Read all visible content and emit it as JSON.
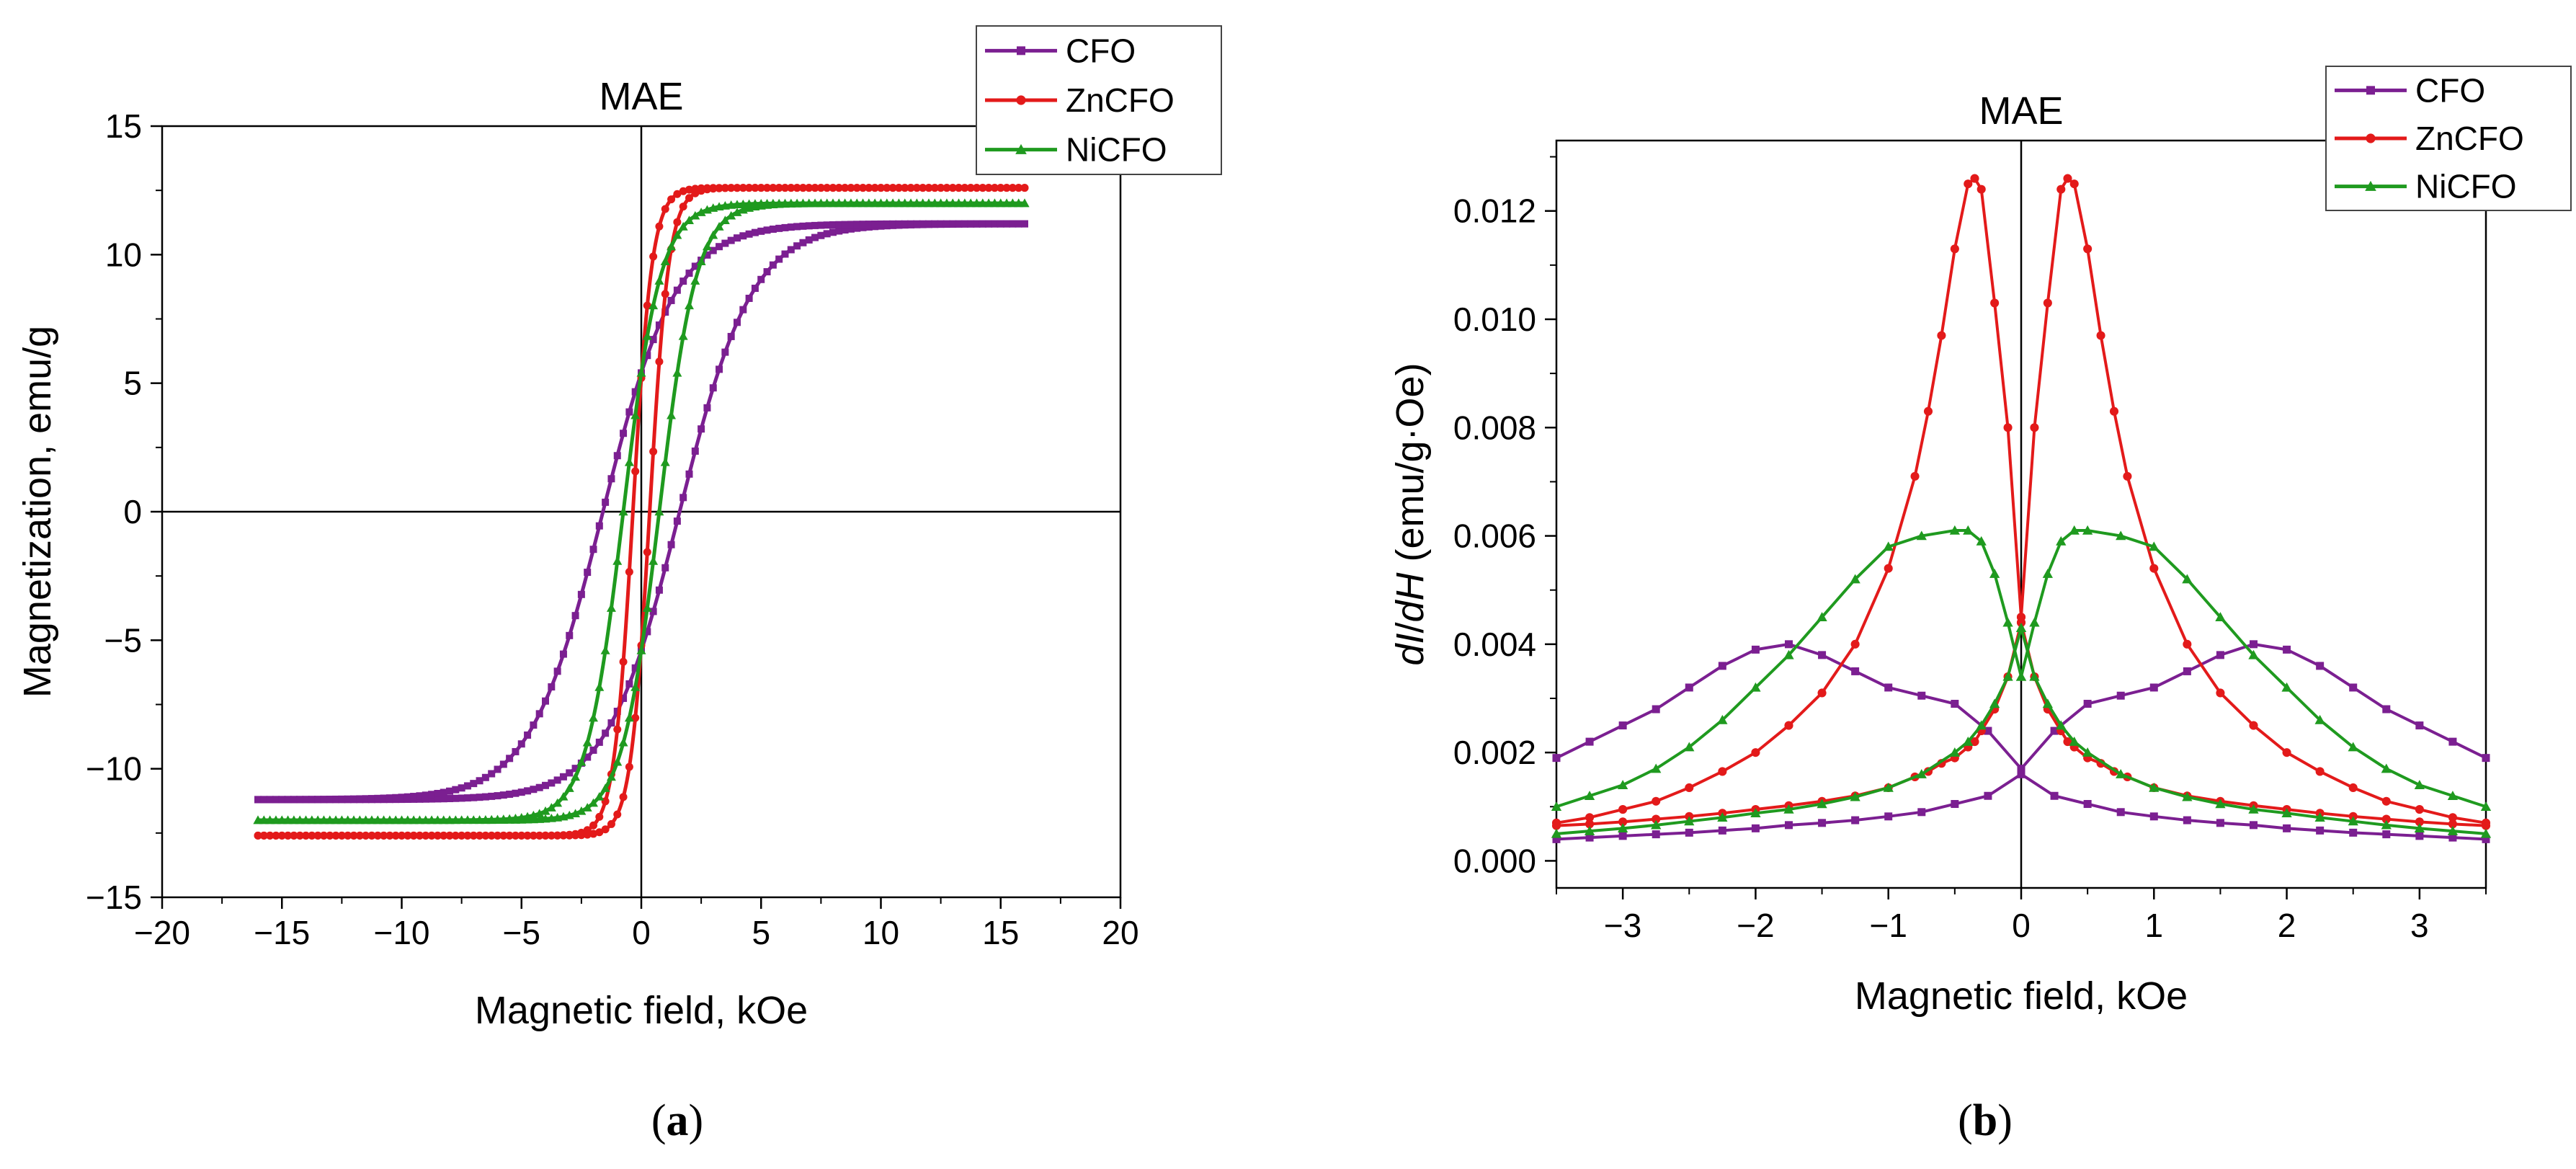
{
  "chart_data": [
    {
      "type": "line",
      "panel_label": "a",
      "title": "MAE",
      "xlabel": "Magnetic field, kOe",
      "ylabel": "Magnetization, emu/g",
      "xlim": [
        -20,
        20
      ],
      "ylim": [
        -15,
        15
      ],
      "xticks": [
        -20,
        -15,
        -10,
        -5,
        0,
        5,
        10,
        15,
        20
      ],
      "xtick_labels": [
        "−20",
        "−15",
        "−10",
        "−5",
        "0",
        "5",
        "10",
        "15",
        "20"
      ],
      "yticks": [
        -15,
        -10,
        -5,
        0,
        5,
        10,
        15
      ],
      "ytick_labels": [
        "−15",
        "−10",
        "−5",
        "0",
        "5",
        "10",
        "15"
      ],
      "legend_position": "top-right",
      "series": [
        {
          "name": "CFO",
          "color": "#7b1f91",
          "marker": "square",
          "Ms": 11.2,
          "Hc": 1.6,
          "Mr": 5.4
        },
        {
          "name": "ZnCFO",
          "color": "#e31a1a",
          "marker": "circle",
          "Ms": 12.6,
          "Hc": 0.35,
          "Mr": 5.2
        },
        {
          "name": "NiCFO",
          "color": "#1f9a1f",
          "marker": "triangle",
          "Ms": 12.0,
          "Hc": 0.75,
          "Mr": 5.4
        }
      ]
    },
    {
      "type": "line",
      "panel_label": "b",
      "title": "MAE",
      "xlabel": "Magnetic field, kOe",
      "ylabel_italic_1": "dI",
      "ylabel_sep": "/",
      "ylabel_italic_2": "dH",
      "ylabel_rest": " (emu/g·Oe)",
      "xlim": [
        -3.5,
        3.5
      ],
      "ylim": [
        -0.0005,
        0.0133
      ],
      "xticks": [
        -3,
        -2,
        -1,
        0,
        1,
        2,
        3
      ],
      "xtick_labels": [
        "−3",
        "−2",
        "−1",
        "0",
        "1",
        "2",
        "3"
      ],
      "yticks": [
        0,
        0.002,
        0.004,
        0.006,
        0.008,
        0.01,
        0.012
      ],
      "ytick_labels": [
        "0.000",
        "0.002",
        "0.004",
        "0.006",
        "0.008",
        "0.010",
        "0.012"
      ],
      "legend_position": "top-right",
      "series": [
        {
          "name": "CFO",
          "color": "#7b1f91",
          "marker": "square",
          "x": [
            0.0,
            0.25,
            0.5,
            0.75,
            1.0,
            1.25,
            1.5,
            1.75,
            2.0,
            2.25,
            2.5,
            2.75,
            3.0,
            3.25,
            3.5
          ],
          "inward": [
            0.0016,
            0.0012,
            0.00105,
            0.0009,
            0.00082,
            0.00075,
            0.0007,
            0.00066,
            0.0006,
            0.00056,
            0.00052,
            0.00049,
            0.00046,
            0.00043,
            0.0004
          ],
          "outward": [
            0.0017,
            0.0024,
            0.0029,
            0.00305,
            0.0032,
            0.0035,
            0.0038,
            0.004,
            0.0039,
            0.0036,
            0.0032,
            0.0028,
            0.0025,
            0.0022,
            0.0019
          ]
        },
        {
          "name": "ZnCFO",
          "color": "#e31a1a",
          "marker": "circle",
          "x": [
            0.0,
            0.1,
            0.2,
            0.3,
            0.35,
            0.4,
            0.5,
            0.6,
            0.7,
            0.8,
            1.0,
            1.25,
            1.5,
            1.75,
            2.0,
            2.25,
            2.5,
            2.75,
            3.0,
            3.25,
            3.5
          ],
          "inward": [
            0.0044,
            0.0034,
            0.0028,
            0.0024,
            0.0022,
            0.0021,
            0.0019,
            0.0018,
            0.00165,
            0.00155,
            0.00135,
            0.0012,
            0.0011,
            0.00102,
            0.00095,
            0.00088,
            0.00082,
            0.00077,
            0.00072,
            0.00068,
            0.00065
          ],
          "outward": [
            0.0045,
            0.008,
            0.0103,
            0.0124,
            0.0126,
            0.0125,
            0.0113,
            0.0097,
            0.0083,
            0.0071,
            0.0054,
            0.004,
            0.0031,
            0.0025,
            0.002,
            0.00165,
            0.00135,
            0.0011,
            0.00095,
            0.0008,
            0.0007
          ]
        },
        {
          "name": "NiCFO",
          "color": "#1f9a1f",
          "marker": "triangle",
          "x": [
            0.0,
            0.1,
            0.2,
            0.3,
            0.4,
            0.5,
            0.75,
            1.0,
            1.25,
            1.5,
            1.75,
            2.0,
            2.25,
            2.5,
            2.75,
            3.0,
            3.25,
            3.5
          ],
          "inward": [
            0.0043,
            0.0034,
            0.0029,
            0.0025,
            0.0022,
            0.002,
            0.0016,
            0.00135,
            0.00118,
            0.00105,
            0.00095,
            0.00088,
            0.0008,
            0.00073,
            0.00066,
            0.0006,
            0.00055,
            0.0005
          ],
          "outward": [
            0.0034,
            0.0044,
            0.0053,
            0.0059,
            0.0061,
            0.0061,
            0.006,
            0.0058,
            0.0052,
            0.0045,
            0.0038,
            0.0032,
            0.0026,
            0.0021,
            0.0017,
            0.0014,
            0.0012,
            0.001
          ]
        }
      ]
    }
  ]
}
